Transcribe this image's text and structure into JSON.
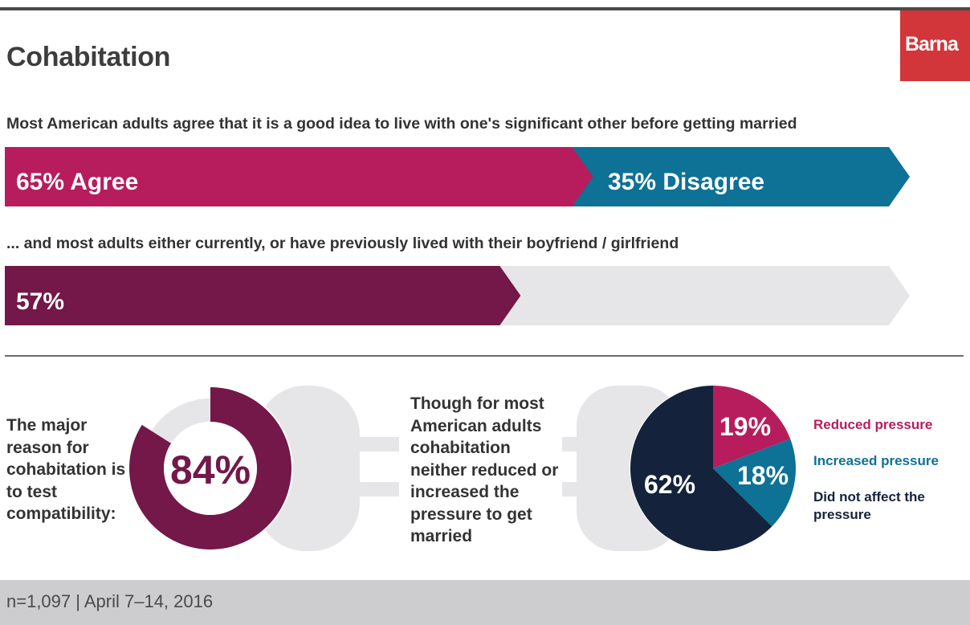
{
  "header": {
    "title": "Cohabitation",
    "brand": "Barna"
  },
  "questions": {
    "q1": "Most American adults agree that it is a good idea to live with one's significant other before getting married",
    "q2": "... and most adults either currently, or have previously lived with their boyfriend / girlfriend"
  },
  "left_text": "The major reason for cohabitation is to test compatibility:",
  "mid_text": "Though for most American adults cohabitation neither reduced or increased the pressure to get married",
  "footer": "n=1,097 | April 7–14, 2016",
  "colors": {
    "agree": "#b71d5c",
    "disagree": "#0e7196",
    "lived": "#731848",
    "track": "#e6e6e8",
    "reduced": "#b71d5c",
    "increased": "#0e7196",
    "not_affected": "#14233b"
  },
  "chart_data": [
    {
      "type": "bar",
      "stacked": true,
      "categories": [
        "Agree",
        "Disagree"
      ],
      "values": [
        65,
        35
      ],
      "labels": [
        "65% Agree",
        "35% Disagree"
      ]
    },
    {
      "type": "bar",
      "values": [
        57
      ],
      "max": 100,
      "labels": [
        "57%"
      ]
    },
    {
      "type": "pie",
      "donut": true,
      "values": [
        84,
        16
      ],
      "center_label": "84%"
    },
    {
      "type": "pie",
      "categories": [
        "Reduced pressure",
        "Increased pressure",
        "Did not affect the pressure"
      ],
      "values": [
        19,
        18,
        62
      ],
      "labels": [
        "19%",
        "18%",
        "62%"
      ]
    }
  ]
}
